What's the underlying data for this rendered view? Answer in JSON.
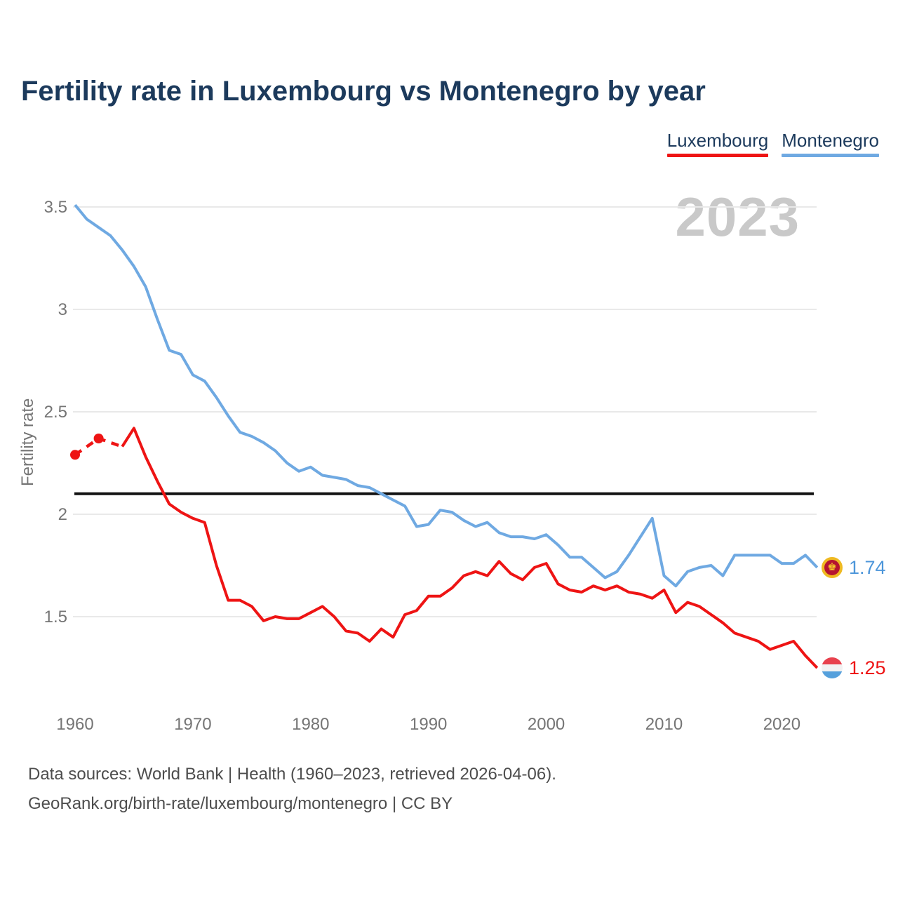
{
  "title": "Fertility rate in Luxembourg vs Montenegro by year",
  "watermark": "2023",
  "legend": {
    "items": [
      {
        "label": "Luxembourg",
        "color": "#ee1414"
      },
      {
        "label": "Montenegro",
        "color": "#6fa9e2"
      }
    ]
  },
  "end_labels": [
    {
      "series": "Montenegro",
      "value": "1.74",
      "color": "#4d96da",
      "flag": "montenegro-flag"
    },
    {
      "series": "Luxembourg",
      "value": "1.25",
      "color": "#ee1414",
      "flag": "luxembourg-flag"
    }
  ],
  "flags": {
    "montenegro": {
      "ring": "#efb921",
      "field": "#b51330",
      "emblem": "#f6cb2a",
      "emblem_glyph": "♚"
    },
    "luxembourg": {
      "top": "#e8414d",
      "middle": "#f2f2f2",
      "bottom": "#55a0dc"
    }
  },
  "footer": {
    "line1": "Data sources: World Bank | Health (1960–2023, retrieved 2026-04-06).",
    "line2": "GeoRank.org/birth-rate/luxembourg/montenegro | CC BY"
  },
  "chart_data": {
    "type": "line",
    "title": "Fertility rate in Luxembourg vs Montenegro by year",
    "xlabel": "",
    "ylabel": "Fertility rate",
    "x_range": [
      1960,
      2023
    ],
    "ylim": [
      1.15,
      3.55
    ],
    "x_ticks": [
      1960,
      1970,
      1980,
      1990,
      2000,
      2010,
      2020
    ],
    "y_ticks": [
      1.5,
      2,
      2.5,
      3,
      3.5
    ],
    "grid": "horizontal",
    "gridline_color": "#e9e9e9",
    "tick_color": "#757575",
    "legend_position": "top-right",
    "reference_line": {
      "value": 2.1,
      "color": "#111111"
    },
    "years": [
      1960,
      1961,
      1962,
      1963,
      1964,
      1965,
      1966,
      1967,
      1968,
      1969,
      1970,
      1971,
      1972,
      1973,
      1974,
      1975,
      1976,
      1977,
      1978,
      1979,
      1980,
      1981,
      1982,
      1983,
      1984,
      1985,
      1986,
      1987,
      1988,
      1989,
      1990,
      1991,
      1992,
      1993,
      1994,
      1995,
      1996,
      1997,
      1998,
      1999,
      2000,
      2001,
      2002,
      2003,
      2004,
      2005,
      2006,
      2007,
      2008,
      2009,
      2010,
      2011,
      2012,
      2013,
      2014,
      2015,
      2016,
      2017,
      2018,
      2019,
      2020,
      2021,
      2022,
      2023
    ],
    "series": [
      {
        "name": "Montenegro",
        "color": "#6fa9e2",
        "end_label": "1.74",
        "values": [
          3.51,
          3.44,
          3.4,
          3.36,
          3.29,
          3.21,
          3.11,
          2.95,
          2.8,
          2.78,
          2.68,
          2.65,
          2.57,
          2.48,
          2.4,
          2.38,
          2.35,
          2.31,
          2.25,
          2.21,
          2.23,
          2.19,
          2.18,
          2.17,
          2.14,
          2.13,
          2.1,
          2.07,
          2.04,
          1.94,
          1.95,
          2.02,
          2.01,
          1.97,
          1.94,
          1.96,
          1.91,
          1.89,
          1.89,
          1.88,
          1.9,
          1.85,
          1.79,
          1.79,
          1.74,
          1.69,
          1.72,
          1.8,
          1.89,
          1.98,
          1.7,
          1.65,
          1.72,
          1.74,
          1.75,
          1.7,
          1.8,
          1.8,
          1.8,
          1.8,
          1.76,
          1.76,
          1.8,
          1.74
        ]
      },
      {
        "name": "Luxembourg",
        "color": "#ee1414",
        "end_label": "1.25",
        "dashed_until_year": 1964,
        "markers_at": [
          1960,
          1962
        ],
        "values": [
          2.29,
          2.33,
          2.37,
          2.35,
          2.33,
          2.42,
          2.28,
          2.16,
          2.05,
          2.01,
          1.98,
          1.96,
          1.75,
          1.58,
          1.58,
          1.55,
          1.48,
          1.5,
          1.49,
          1.49,
          1.52,
          1.55,
          1.5,
          1.43,
          1.42,
          1.38,
          1.44,
          1.4,
          1.51,
          1.53,
          1.6,
          1.6,
          1.64,
          1.7,
          1.72,
          1.7,
          1.77,
          1.71,
          1.68,
          1.74,
          1.76,
          1.66,
          1.63,
          1.62,
          1.65,
          1.63,
          1.65,
          1.62,
          1.61,
          1.59,
          1.63,
          1.52,
          1.57,
          1.55,
          1.51,
          1.47,
          1.42,
          1.4,
          1.38,
          1.34,
          1.36,
          1.38,
          1.31,
          1.25
        ]
      }
    ]
  }
}
